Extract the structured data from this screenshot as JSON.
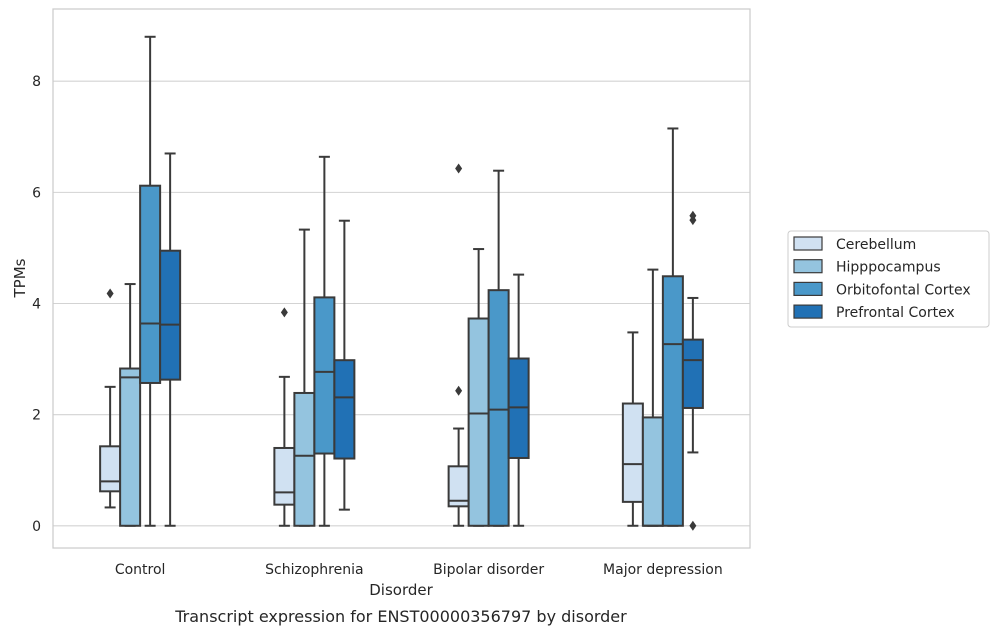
{
  "chart_data": {
    "type": "box",
    "xlabel": "Disorder",
    "ylabel": "TPMs",
    "caption": "Transcript expression for ENST00000356797 by disorder",
    "ylim": [
      -0.4,
      9.3
    ],
    "yticks": [
      "0",
      "2",
      "4",
      "6",
      "8"
    ],
    "grid": true,
    "legend_position": "right",
    "categories": [
      "Control",
      "Schizophrenia",
      "Bipolar disorder",
      "Major depression"
    ],
    "series": [
      {
        "name": "Cerebellum",
        "color": "#d0e1f2",
        "boxes": [
          {
            "whislo": 0.33,
            "q1": 0.62,
            "med": 0.8,
            "q3": 1.43,
            "whishi": 2.5,
            "fliers": [
              4.18
            ]
          },
          {
            "whislo": 0.0,
            "q1": 0.38,
            "med": 0.6,
            "q3": 1.4,
            "whishi": 2.68,
            "fliers": [
              3.84
            ]
          },
          {
            "whislo": 0.0,
            "q1": 0.35,
            "med": 0.45,
            "q3": 1.07,
            "whishi": 1.75,
            "fliers": [
              2.43,
              6.43
            ]
          },
          {
            "whislo": 0.0,
            "q1": 0.43,
            "med": 1.11,
            "q3": 2.2,
            "whishi": 3.48,
            "fliers": []
          }
        ]
      },
      {
        "name": "Hipppocampus",
        "color": "#94c4df",
        "boxes": [
          {
            "whislo": 0.0,
            "q1": 0.0,
            "med": 2.67,
            "q3": 2.83,
            "whishi": 4.35,
            "fliers": []
          },
          {
            "whislo": 0.0,
            "q1": 0.0,
            "med": 1.26,
            "q3": 2.39,
            "whishi": 5.33,
            "fliers": []
          },
          {
            "whislo": 0.0,
            "q1": 0.0,
            "med": 2.02,
            "q3": 3.73,
            "whishi": 4.98,
            "fliers": []
          },
          {
            "whislo": 0.0,
            "q1": 0.0,
            "med": 0.0,
            "q3": 1.95,
            "whishi": 4.61,
            "fliers": []
          }
        ]
      },
      {
        "name": "Orbitofontal Cortex",
        "color": "#4a98c9",
        "boxes": [
          {
            "whislo": 0.0,
            "q1": 2.57,
            "med": 3.64,
            "q3": 6.12,
            "whishi": 8.8,
            "fliers": []
          },
          {
            "whislo": 0.0,
            "q1": 1.3,
            "med": 2.77,
            "q3": 4.11,
            "whishi": 6.64,
            "fliers": []
          },
          {
            "whislo": 0.0,
            "q1": 0.0,
            "med": 2.09,
            "q3": 4.24,
            "whishi": 6.39,
            "fliers": []
          },
          {
            "whislo": 0.0,
            "q1": 0.0,
            "med": 3.27,
            "q3": 4.49,
            "whishi": 7.15,
            "fliers": []
          }
        ]
      },
      {
        "name": "Prefrontal Cortex",
        "color": "#2171b5",
        "boxes": [
          {
            "whislo": 0.0,
            "q1": 2.63,
            "med": 3.62,
            "q3": 4.95,
            "whishi": 6.7,
            "fliers": []
          },
          {
            "whislo": 0.29,
            "q1": 1.21,
            "med": 2.31,
            "q3": 2.98,
            "whishi": 5.49,
            "fliers": []
          },
          {
            "whislo": 0.0,
            "q1": 1.22,
            "med": 2.13,
            "q3": 3.01,
            "whishi": 4.52,
            "fliers": []
          },
          {
            "whislo": 1.32,
            "q1": 2.12,
            "med": 2.98,
            "q3": 3.35,
            "whishi": 4.1,
            "fliers": [
              0.0,
              5.5,
              5.58
            ]
          }
        ]
      }
    ]
  }
}
